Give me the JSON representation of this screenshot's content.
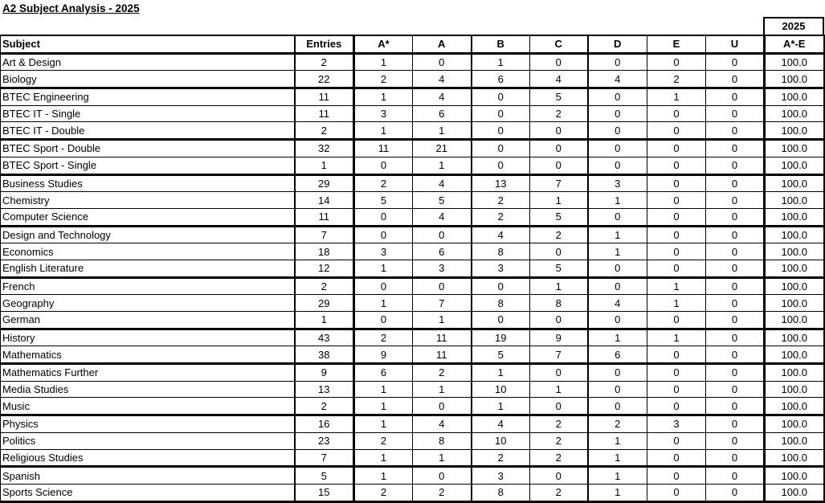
{
  "title": "A2 Subject Analysis - 2025",
  "year": "2025",
  "columns": [
    "Subject",
    "Entries",
    "A*",
    "A",
    "B",
    "C",
    "D",
    "E",
    "U",
    "A*-E"
  ],
  "rows": [
    [
      "Art & Design",
      "2",
      "1",
      "0",
      "1",
      "0",
      "0",
      "0",
      "0",
      "100.0"
    ],
    [
      "Biology",
      "22",
      "2",
      "4",
      "6",
      "4",
      "4",
      "2",
      "0",
      "100.0"
    ],
    [
      "BTEC Engineering",
      "11",
      "1",
      "4",
      "0",
      "5",
      "0",
      "1",
      "0",
      "100.0"
    ],
    [
      "BTEC IT - Single",
      "11",
      "3",
      "6",
      "0",
      "2",
      "0",
      "0",
      "0",
      "100.0"
    ],
    [
      "BTEC IT - Double",
      "2",
      "1",
      "1",
      "0",
      "0",
      "0",
      "0",
      "0",
      "100.0"
    ],
    [
      "BTEC Sport - Double",
      "32",
      "11",
      "21",
      "0",
      "0",
      "0",
      "0",
      "0",
      "100.0"
    ],
    [
      "BTEC Sport - Single",
      "1",
      "0",
      "1",
      "0",
      "0",
      "0",
      "0",
      "0",
      "100.0"
    ],
    [
      "Business Studies",
      "29",
      "2",
      "4",
      "13",
      "7",
      "3",
      "0",
      "0",
      "100.0"
    ],
    [
      "Chemistry",
      "14",
      "5",
      "5",
      "2",
      "1",
      "1",
      "0",
      "0",
      "100.0"
    ],
    [
      "Computer Science",
      "11",
      "0",
      "4",
      "2",
      "5",
      "0",
      "0",
      "0",
      "100.0"
    ],
    [
      "Design and Technology",
      "7",
      "0",
      "0",
      "4",
      "2",
      "1",
      "0",
      "0",
      "100.0"
    ],
    [
      "Economics",
      "18",
      "3",
      "6",
      "8",
      "0",
      "1",
      "0",
      "0",
      "100.0"
    ],
    [
      "English Literature",
      "12",
      "1",
      "3",
      "3",
      "5",
      "0",
      "0",
      "0",
      "100.0"
    ],
    [
      "French",
      "2",
      "0",
      "0",
      "0",
      "1",
      "0",
      "1",
      "0",
      "100.0"
    ],
    [
      "Geography",
      "29",
      "1",
      "7",
      "8",
      "8",
      "4",
      "1",
      "0",
      "100.0"
    ],
    [
      "German",
      "1",
      "0",
      "1",
      "0",
      "0",
      "0",
      "0",
      "0",
      "100.0"
    ],
    [
      "History",
      "43",
      "2",
      "11",
      "19",
      "9",
      "1",
      "1",
      "0",
      "100.0"
    ],
    [
      "Mathematics",
      "38",
      "9",
      "11",
      "5",
      "7",
      "6",
      "0",
      "0",
      "100.0"
    ],
    [
      "Mathematics Further",
      "9",
      "6",
      "2",
      "1",
      "0",
      "0",
      "0",
      "0",
      "100.0"
    ],
    [
      "Media Studies",
      "13",
      "1",
      "1",
      "10",
      "1",
      "0",
      "0",
      "0",
      "100.0"
    ],
    [
      "Music",
      "2",
      "1",
      "0",
      "1",
      "0",
      "0",
      "0",
      "0",
      "100.0"
    ],
    [
      "Physics",
      "16",
      "1",
      "4",
      "4",
      "2",
      "2",
      "3",
      "0",
      "100.0"
    ],
    [
      "Politics",
      "23",
      "2",
      "8",
      "10",
      "2",
      "1",
      "0",
      "0",
      "100.0"
    ],
    [
      "Religious Studies",
      "7",
      "1",
      "1",
      "2",
      "2",
      "1",
      "0",
      "0",
      "100.0"
    ],
    [
      "Spanish",
      "5",
      "1",
      "0",
      "3",
      "0",
      "1",
      "0",
      "0",
      "100.0"
    ],
    [
      "Sports Science",
      "15",
      "2",
      "2",
      "8",
      "2",
      "1",
      "0",
      "0",
      "100.0"
    ]
  ]
}
